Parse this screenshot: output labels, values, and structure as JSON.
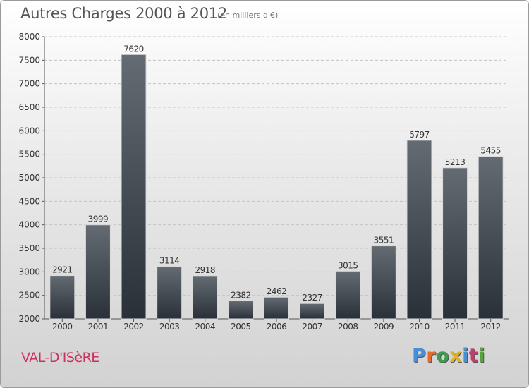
{
  "title": "Autres Charges 2000 à 2012",
  "subtitle": "(en milliers d'€)",
  "footer": {
    "place": "VAL-D'ISèRE",
    "logo": "Proxiti"
  },
  "logo_colors": [
    "#4a8fd6",
    "#e46b2b",
    "#3aa14a",
    "#d9b227",
    "#4a8fd6",
    "#c73a6d",
    "#5aa23a"
  ],
  "chart_data": {
    "type": "bar",
    "categories": [
      "2000",
      "2001",
      "2002",
      "2003",
      "2004",
      "2005",
      "2006",
      "2007",
      "2008",
      "2009",
      "2010",
      "2011",
      "2012"
    ],
    "values": [
      2921,
      3999,
      7620,
      3114,
      2918,
      2382,
      2462,
      2327,
      3015,
      3551,
      5797,
      5213,
      5455
    ],
    "ylim": [
      2000,
      8000
    ],
    "yticks": [
      2000,
      2500,
      3000,
      3500,
      4000,
      4500,
      5000,
      5500,
      6000,
      6500,
      7000,
      7500,
      8000
    ],
    "grid": true,
    "bar_color": "#3f4750"
  }
}
